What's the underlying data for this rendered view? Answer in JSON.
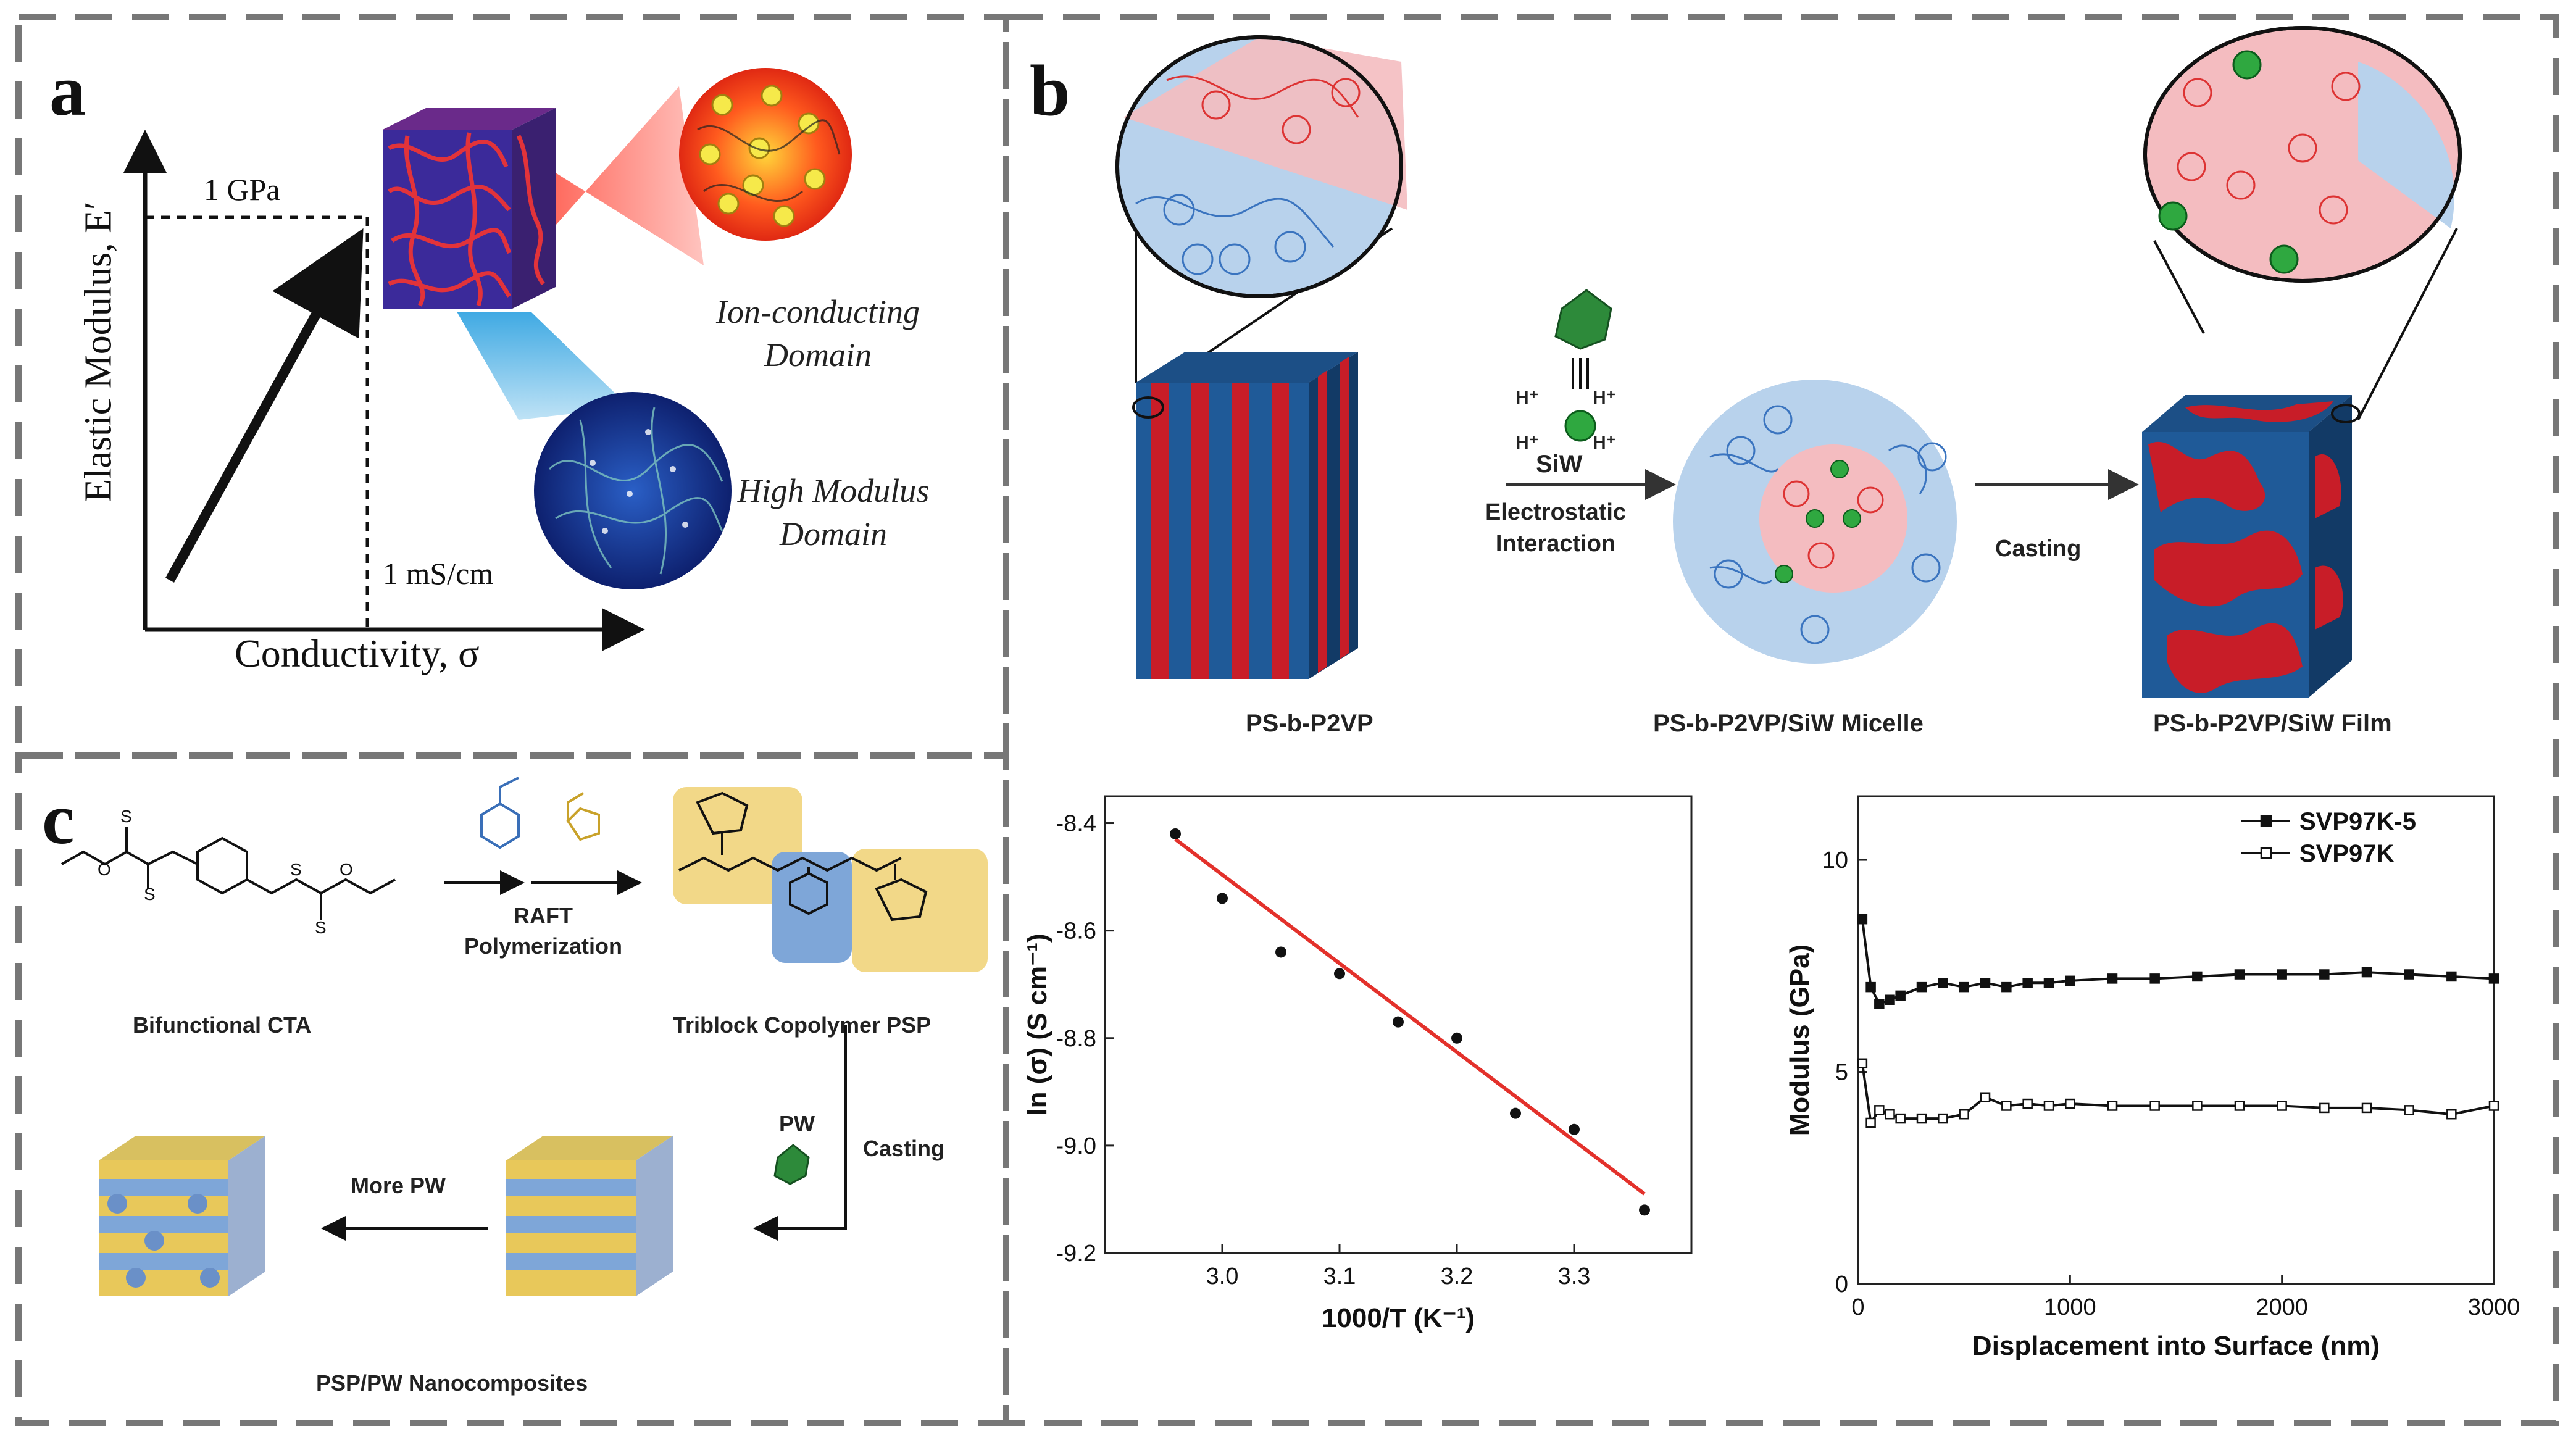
{
  "panels": {
    "a": {
      "letter": "a",
      "y_axis_label": "Elastic Modulus, E′",
      "x_axis_label": "Conductivity, σ",
      "modulus_threshold": "1 GPa",
      "conductivity_threshold": "1 mS/cm",
      "domain_top_line1": "Ion-conducting",
      "domain_top_line2": "Domain",
      "domain_bottom_line1": "High Modulus",
      "domain_bottom_line2": "Domain"
    },
    "b": {
      "letter": "b",
      "label_cube1": "PS-b-P2VP",
      "label_micelle": "PS-b-P2VP/SiW Micelle",
      "label_film": "PS-b-P2VP/SiW Film",
      "siw_label": "SiW",
      "arrow1_line1": "Electrostatic",
      "arrow1_line2": "Interaction",
      "arrow2_label": "Casting",
      "hplus": "H⁺"
    },
    "c": {
      "letter": "c",
      "cta_label": "Bifunctional CTA",
      "raft_line1": "RAFT",
      "raft_line2": "Polymerization",
      "triblock_label": "Triblock Copolymer PSP",
      "pw_label": "PW",
      "casting_label": "Casting",
      "more_pw_label": "More PW",
      "nanocomposite_label": "PSP/PW Nanocomposites"
    }
  },
  "chart_data": [
    {
      "type": "scatter",
      "xlabel": "1000/T (K⁻¹)",
      "ylabel": "ln (σ) (S cm⁻¹)",
      "xlim": [
        2.9,
        3.4
      ],
      "ylim": [
        -9.2,
        -8.35
      ],
      "x_ticks": [
        "3.0",
        "3.1",
        "3.2",
        "3.3"
      ],
      "y_ticks": [
        "-8.4",
        "-8.6",
        "-8.8",
        "-9.0",
        "-9.2"
      ],
      "points": [
        {
          "x": 2.96,
          "y": -8.42
        },
        {
          "x": 3.0,
          "y": -8.54
        },
        {
          "x": 3.05,
          "y": -8.64
        },
        {
          "x": 3.1,
          "y": -8.68
        },
        {
          "x": 3.15,
          "y": -8.77
        },
        {
          "x": 3.2,
          "y": -8.8
        },
        {
          "x": 3.25,
          "y": -8.94
        },
        {
          "x": 3.3,
          "y": -8.97
        },
        {
          "x": 3.36,
          "y": -9.12
        }
      ],
      "fit_line": {
        "x": [
          2.96,
          3.36
        ],
        "y": [
          -8.43,
          -9.09
        ]
      },
      "colors": {
        "points": "#111111",
        "fit": "#e3312b"
      }
    },
    {
      "type": "line",
      "xlabel": "Displacement into Surface (nm)",
      "ylabel": "Modulus (GPa)",
      "xlim": [
        0,
        3000
      ],
      "ylim": [
        0,
        11.5
      ],
      "x_ticks": [
        "0",
        "1000",
        "2000",
        "3000"
      ],
      "y_ticks": [
        "0",
        "5",
        "10"
      ],
      "legend_position": "top-right",
      "series": [
        {
          "name": "SVP97K-5",
          "marker": "filled-square",
          "x": [
            20,
            60,
            100,
            150,
            200,
            300,
            400,
            500,
            600,
            700,
            800,
            900,
            1000,
            1200,
            1400,
            1600,
            1800,
            2000,
            2200,
            2400,
            2600,
            2800,
            3000
          ],
          "y": [
            8.6,
            7.0,
            6.6,
            6.7,
            6.8,
            7.0,
            7.1,
            7.0,
            7.1,
            7.0,
            7.1,
            7.1,
            7.15,
            7.2,
            7.2,
            7.25,
            7.3,
            7.3,
            7.3,
            7.35,
            7.3,
            7.25,
            7.2
          ]
        },
        {
          "name": "SVP97K",
          "marker": "open-square",
          "x": [
            20,
            60,
            100,
            150,
            200,
            300,
            400,
            500,
            600,
            700,
            800,
            900,
            1000,
            1200,
            1400,
            1600,
            1800,
            2000,
            2200,
            2400,
            2600,
            2800,
            3000
          ],
          "y": [
            5.2,
            3.8,
            4.1,
            4.0,
            3.9,
            3.9,
            3.9,
            4.0,
            4.4,
            4.2,
            4.25,
            4.2,
            4.25,
            4.2,
            4.2,
            4.2,
            4.2,
            4.2,
            4.15,
            4.15,
            4.1,
            4.0,
            4.2
          ]
        }
      ]
    }
  ]
}
